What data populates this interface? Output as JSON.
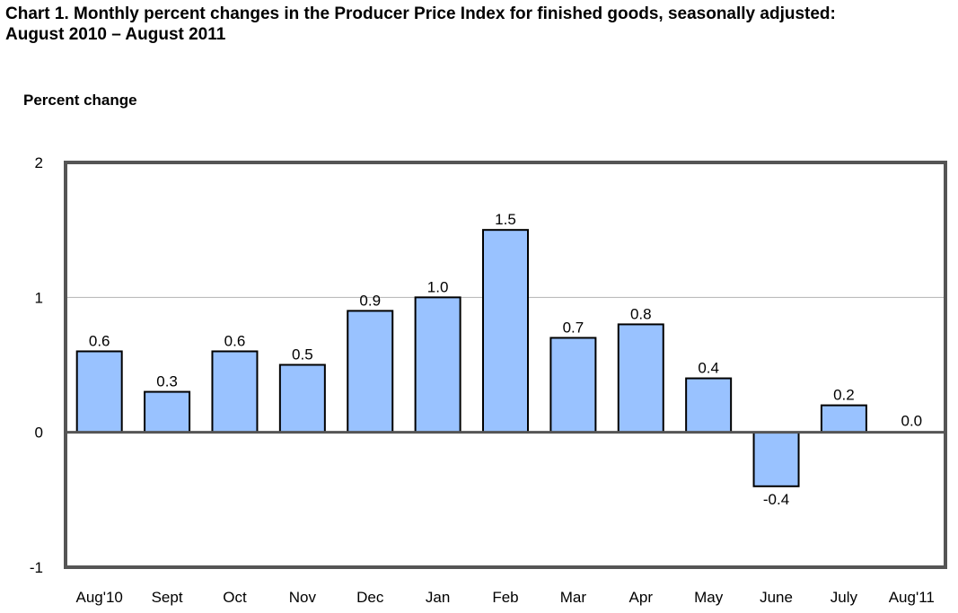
{
  "page": {
    "title_line1": "Chart 1. Monthly percent changes in the Producer Price Index for finished goods, seasonally adjusted:",
    "title_line2": "August 2010 – August 2011"
  },
  "chart_data": {
    "type": "bar",
    "title": "Chart 1. Monthly percent changes in the Producer Price Index for finished goods, seasonally adjusted: August 2010 – August 2011",
    "xlabel": "",
    "ylabel": "Percent change",
    "ylim": [
      -1,
      2
    ],
    "yticks": [
      2,
      1,
      0,
      -1
    ],
    "grid": true,
    "categories": [
      "Aug'10",
      "Sept",
      "Oct",
      "Nov",
      "Dec",
      "Jan",
      "Feb",
      "Mar",
      "Apr",
      "May",
      "June",
      "July",
      "Aug'11"
    ],
    "values": [
      0.6,
      0.3,
      0.6,
      0.5,
      0.9,
      1.0,
      1.5,
      0.7,
      0.8,
      0.4,
      -0.4,
      0.2,
      0.0
    ],
    "value_labels": [
      "0.6",
      "0.3",
      "0.6",
      "0.5",
      "0.9",
      "1.0",
      "1.5",
      "0.7",
      "0.8",
      "0.4",
      "-0.4",
      "0.2",
      "0.0"
    ],
    "colors": {
      "bar_fill": "#99c2ff",
      "bar_stroke": "#000000",
      "frame": "#555555",
      "gridline": "#b3b3b3",
      "zero_line": "#555555"
    }
  }
}
